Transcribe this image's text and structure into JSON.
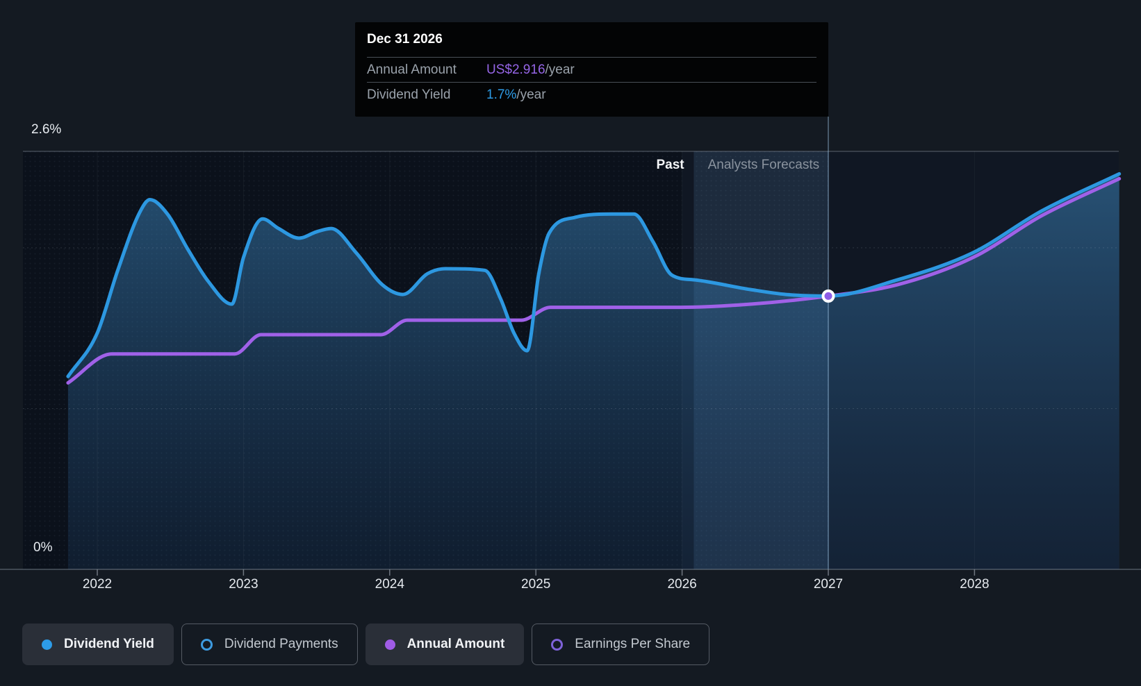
{
  "tooltip": {
    "title": "Dec 31 2026",
    "rows": [
      {
        "label": "Annual Amount",
        "value": "US$2.916",
        "suffix": "/year",
        "value_color": "#9565e6"
      },
      {
        "label": "Dividend Yield",
        "value": "1.7%",
        "suffix": "/year",
        "value_color": "#2e9be6"
      }
    ]
  },
  "chart": {
    "past_label": "Past",
    "forecast_label": "Analysts Forecasts",
    "y_top_label": "2.6%",
    "y_bottom_label": "0%"
  },
  "legend": [
    {
      "label": "Dividend Yield",
      "active": true,
      "marker": "filled",
      "color": "#2d9ce8"
    },
    {
      "label": "Dividend Payments",
      "active": false,
      "marker": "ring",
      "color": "#3d9be0"
    },
    {
      "label": "Annual Amount",
      "active": true,
      "marker": "filled",
      "color": "#a05ce6"
    },
    {
      "label": "Earnings Per Share",
      "active": false,
      "marker": "ring",
      "color": "#7e62d8"
    }
  ],
  "chart_data": {
    "type": "area",
    "title": "Dividend yield history and forecast",
    "x_axis": {
      "ticks": [
        2022,
        2023,
        2024,
        2025,
        2026,
        2027,
        2028
      ],
      "range": [
        2021.79,
        2028.99
      ]
    },
    "y_axis": {
      "range_pct": [
        0,
        2.6
      ],
      "top_label": "2.6%",
      "bottom_label": "0%",
      "solid_gridline_pct": 2.6,
      "dashed_gridlines_pct": [
        2.0,
        1.0
      ]
    },
    "regions": {
      "past_until": 2026.0,
      "highlight_band": [
        2026.08,
        2027.0
      ]
    },
    "marker": {
      "year": 2027.0,
      "pct": 1.7,
      "annual_amount": "US$2.916/year",
      "dividend_yield": "1.7%/year"
    },
    "legend_position": "bottom",
    "series": [
      {
        "name": "Dividend Yield",
        "color": "#2d98e1",
        "area": true,
        "points": [
          [
            2021.8,
            1.2
          ],
          [
            2022.0,
            1.47
          ],
          [
            2022.14,
            1.86
          ],
          [
            2022.29,
            2.22
          ],
          [
            2022.36,
            2.3
          ],
          [
            2022.48,
            2.21
          ],
          [
            2022.62,
            1.99
          ],
          [
            2022.76,
            1.79
          ],
          [
            2022.92,
            1.65
          ],
          [
            2023.0,
            1.94
          ],
          [
            2023.13,
            2.18
          ],
          [
            2023.24,
            2.12
          ],
          [
            2023.38,
            2.06
          ],
          [
            2023.5,
            2.1
          ],
          [
            2023.6,
            2.12
          ],
          [
            2023.77,
            1.97
          ],
          [
            2023.95,
            1.77
          ],
          [
            2024.09,
            1.71
          ],
          [
            2024.26,
            1.84
          ],
          [
            2024.38,
            1.87
          ],
          [
            2024.65,
            1.86
          ],
          [
            2024.76,
            1.68
          ],
          [
            2024.85,
            1.47
          ],
          [
            2024.94,
            1.36
          ],
          [
            2025.02,
            1.84
          ],
          [
            2025.09,
            2.09
          ],
          [
            2025.27,
            2.19
          ],
          [
            2025.52,
            2.21
          ],
          [
            2025.67,
            2.21
          ],
          [
            2025.8,
            2.04
          ],
          [
            2025.93,
            1.83
          ],
          [
            2026.09,
            1.8
          ],
          [
            2026.47,
            1.74
          ],
          [
            2026.71,
            1.71
          ],
          [
            2027.0,
            1.7
          ],
          [
            2027.47,
            1.8
          ],
          [
            2027.99,
            1.97
          ],
          [
            2028.46,
            2.23
          ],
          [
            2028.99,
            2.46
          ]
        ]
      },
      {
        "name": "Annual Amount",
        "color": "#a061e8",
        "area": false,
        "points": [
          [
            2021.8,
            1.16
          ],
          [
            2022.1,
            1.34
          ],
          [
            2022.94,
            1.34
          ],
          [
            2023.12,
            1.46
          ],
          [
            2023.94,
            1.46
          ],
          [
            2024.12,
            1.55
          ],
          [
            2024.9,
            1.55
          ],
          [
            2025.1,
            1.63
          ],
          [
            2025.99,
            1.63
          ],
          [
            2026.47,
            1.65
          ],
          [
            2027.0,
            1.7
          ],
          [
            2027.47,
            1.77
          ],
          [
            2027.99,
            1.94
          ],
          [
            2028.46,
            2.2
          ],
          [
            2028.99,
            2.43
          ]
        ]
      }
    ]
  }
}
